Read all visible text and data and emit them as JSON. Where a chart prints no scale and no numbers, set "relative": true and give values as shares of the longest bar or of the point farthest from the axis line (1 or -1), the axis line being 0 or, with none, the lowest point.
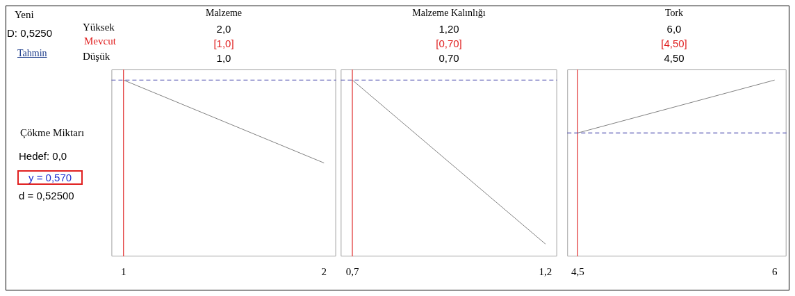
{
  "chart_data": [
    {
      "type": "other",
      "annotations": [
        "Yeni",
        "D: 0,5250",
        "Tahmin",
        "Yüksek",
        "Mevcut",
        "Düşük",
        "Çökme Miktarı",
        "Hedef: 0,0",
        "y = 0,570",
        "d = 0,52500"
      ]
    },
    {
      "type": "line",
      "title": "Malzeme",
      "annotations": [
        "2,0",
        "[1,0]",
        "1,0"
      ],
      "x": [
        1,
        2
      ],
      "values": [
        1,
        0.53
      ],
      "color": "#808080",
      "relative": true,
      "xlim": [
        0.94,
        2.06
      ],
      "xticks": [
        {
          "value": 1,
          "label": "1"
        },
        {
          "value": 2,
          "label": "2"
        }
      ],
      "grid": false,
      "legend": false,
      "ref_lines": [
        {
          "axis": "x",
          "value": 1,
          "color": "#e03030"
        },
        {
          "axis": "y",
          "value": 1,
          "color": "#5050b0",
          "line_style": "dashed"
        }
      ]
    },
    {
      "type": "line",
      "title": "Malzeme Kalınlığı",
      "annotations": [
        "1,20",
        "[0,70]",
        "0,70"
      ],
      "x": [
        0.7,
        1.2
      ],
      "values": [
        1,
        0.07
      ],
      "color": "#808080",
      "relative": true,
      "xlim": [
        0.67,
        1.23
      ],
      "xticks": [
        {
          "value": 0.7,
          "label": "0,7"
        },
        {
          "value": 1.2,
          "label": "1,2"
        }
      ],
      "grid": false,
      "legend": false,
      "ref_lines": [
        {
          "axis": "x",
          "value": 0.7,
          "color": "#e03030"
        },
        {
          "axis": "y",
          "value": 1,
          "color": "#5050b0",
          "line_style": "dashed"
        }
      ]
    },
    {
      "type": "line",
      "title": "Tork",
      "annotations": [
        "6,0",
        "[4,50]",
        "4,50"
      ],
      "x": [
        4.5,
        6
      ],
      "values": [
        0.7,
        1
      ],
      "color": "#808080",
      "relative": true,
      "xlim": [
        4.42,
        6.09
      ],
      "xticks": [
        {
          "value": 4.5,
          "label": "4,5"
        },
        {
          "value": 6,
          "label": "6"
        }
      ],
      "grid": false,
      "legend": false,
      "ref_lines": [
        {
          "axis": "x",
          "value": 4.5,
          "color": "#e03030"
        },
        {
          "axis": "y",
          "value": 0.7,
          "color": "#5050b0",
          "line_style": "dashed"
        }
      ]
    }
  ]
}
